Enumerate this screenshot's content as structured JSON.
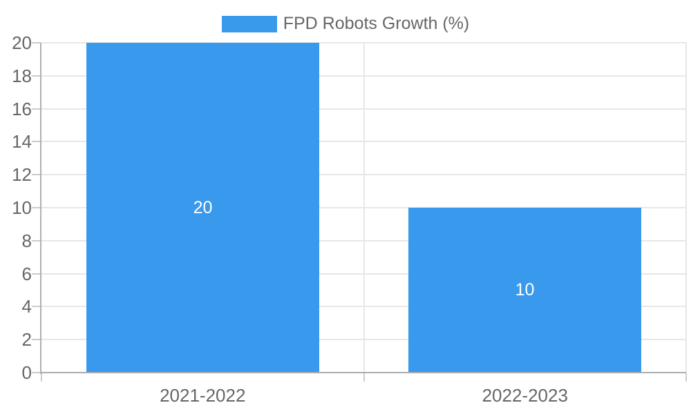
{
  "chart_data": {
    "type": "bar",
    "title": "",
    "categories": [
      "2021-2022",
      "2022-2023"
    ],
    "series": [
      {
        "name": "FPD Robots Growth (%)",
        "values": [
          20,
          10
        ]
      }
    ],
    "data_labels": [
      "20",
      "10"
    ],
    "ylim": [
      0,
      20
    ],
    "ytick_step": 2,
    "yticks": [
      0,
      2,
      4,
      6,
      8,
      10,
      12,
      14,
      16,
      18,
      20
    ],
    "grid": true,
    "legend_position": "top-center",
    "bar_color": "#3999EC",
    "data_label_color": "#FFFFFF",
    "axis_text_color": "#666666",
    "grid_color": "#E7E7E7",
    "axis_line_color": "#ABABAB"
  },
  "legend": {
    "label": "FPD Robots Growth (%)",
    "swatch_color": "#3999EC"
  }
}
